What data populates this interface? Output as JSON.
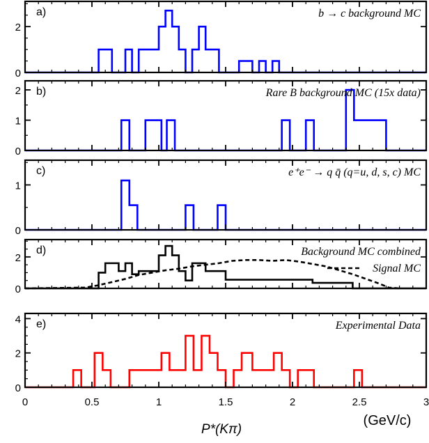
{
  "chart_data": {
    "type": "histogram-stack",
    "xlabel": "P*(Kπ)",
    "xunit": "(GeV/c)",
    "xlim": [
      0,
      3
    ],
    "xticks": [
      "0",
      "0.5",
      "1",
      "1.5",
      "2",
      "2.5",
      "3"
    ],
    "bin_width": 0.05,
    "panels": [
      {
        "tag": "a)",
        "title": "b → c background MC",
        "ylim": [
          0,
          3.1
        ],
        "yticks": [
          "0",
          "2"
        ],
        "series": [
          {
            "color": "#0000ff",
            "style": "solid",
            "bins": [
              {
                "x0": 0.55,
                "x1": 0.65,
                "y": 1
              },
              {
                "x0": 0.65,
                "x1": 0.75,
                "y": 0
              },
              {
                "x0": 0.75,
                "x1": 0.8,
                "y": 1
              },
              {
                "x0": 0.8,
                "x1": 0.85,
                "y": 0
              },
              {
                "x0": 0.85,
                "x1": 0.9,
                "y": 1
              },
              {
                "x0": 0.9,
                "x1": 1.0,
                "y": 1
              },
              {
                "x0": 1.0,
                "x1": 1.05,
                "y": 2
              },
              {
                "x0": 1.05,
                "x1": 1.1,
                "y": 2.7
              },
              {
                "x0": 1.1,
                "x1": 1.15,
                "y": 2
              },
              {
                "x0": 1.15,
                "x1": 1.2,
                "y": 1
              },
              {
                "x0": 1.2,
                "x1": 1.25,
                "y": 0
              },
              {
                "x0": 1.25,
                "x1": 1.3,
                "y": 1
              },
              {
                "x0": 1.3,
                "x1": 1.35,
                "y": 2
              },
              {
                "x0": 1.35,
                "x1": 1.4,
                "y": 1
              },
              {
                "x0": 1.4,
                "x1": 1.45,
                "y": 1
              },
              {
                "x0": 1.45,
                "x1": 1.5,
                "y": 0
              },
              {
                "x0": 1.6,
                "x1": 1.7,
                "y": 0.5
              },
              {
                "x0": 1.7,
                "x1": 1.75,
                "y": 0
              },
              {
                "x0": 1.75,
                "x1": 1.8,
                "y": 0.5
              },
              {
                "x0": 1.8,
                "x1": 1.85,
                "y": 0
              },
              {
                "x0": 1.85,
                "x1": 1.9,
                "y": 0.5
              }
            ]
          }
        ]
      },
      {
        "tag": "b)",
        "title": "Rare B background MC (15x data)",
        "ylim": [
          0,
          2.3
        ],
        "yticks": [
          "0",
          "1",
          "2"
        ],
        "series": [
          {
            "color": "#0000ff",
            "style": "solid",
            "bins": [
              {
                "x0": 0.72,
                "x1": 0.78,
                "y": 1
              },
              {
                "x0": 0.9,
                "x1": 1.02,
                "y": 1
              },
              {
                "x0": 1.06,
                "x1": 1.12,
                "y": 1
              },
              {
                "x0": 1.92,
                "x1": 1.98,
                "y": 1
              },
              {
                "x0": 2.1,
                "x1": 2.16,
                "y": 1
              },
              {
                "x0": 2.4,
                "x1": 2.46,
                "y": 2
              },
              {
                "x0": 2.46,
                "x1": 2.7,
                "y": 1
              }
            ]
          }
        ]
      },
      {
        "tag": "c)",
        "title": "e⁺e⁻ → q q̄ (q=u, d, s, c) MC",
        "ylim": [
          0,
          1.55
        ],
        "yticks": [
          "0",
          "1"
        ],
        "series": [
          {
            "color": "#0000ff",
            "style": "solid",
            "bins": [
              {
                "x0": 0.72,
                "x1": 0.78,
                "y": 1.1
              },
              {
                "x0": 0.78,
                "x1": 0.84,
                "y": 0.55
              },
              {
                "x0": 1.2,
                "x1": 1.26,
                "y": 0.55
              },
              {
                "x0": 1.44,
                "x1": 1.5,
                "y": 0.55
              }
            ]
          }
        ]
      },
      {
        "tag": "d)",
        "title": "Background MC combined",
        "legend": "Signal MC",
        "ylim": [
          0,
          3.1
        ],
        "yticks": [
          "0",
          "2"
        ],
        "series": [
          {
            "color": "#000000",
            "style": "solid",
            "bins": [
              {
                "x0": 0.55,
                "x1": 0.6,
                "y": 1
              },
              {
                "x0": 0.6,
                "x1": 0.65,
                "y": 1.6
              },
              {
                "x0": 0.65,
                "x1": 0.7,
                "y": 1.6
              },
              {
                "x0": 0.7,
                "x1": 0.75,
                "y": 1.1
              },
              {
                "x0": 0.75,
                "x1": 0.8,
                "y": 1.6
              },
              {
                "x0": 0.8,
                "x1": 0.85,
                "y": 0.9
              },
              {
                "x0": 0.85,
                "x1": 0.9,
                "y": 1.1
              },
              {
                "x0": 0.9,
                "x1": 1.0,
                "y": 1.1
              },
              {
                "x0": 1.0,
                "x1": 1.05,
                "y": 2.1
              },
              {
                "x0": 1.05,
                "x1": 1.1,
                "y": 2.7
              },
              {
                "x0": 1.1,
                "x1": 1.15,
                "y": 2.1
              },
              {
                "x0": 1.15,
                "x1": 1.2,
                "y": 1.1
              },
              {
                "x0": 1.2,
                "x1": 1.25,
                "y": 0.5
              },
              {
                "x0": 1.25,
                "x1": 1.3,
                "y": 1.6
              },
              {
                "x0": 1.3,
                "x1": 1.35,
                "y": 1.6
              },
              {
                "x0": 1.35,
                "x1": 1.4,
                "y": 1.1
              },
              {
                "x0": 1.4,
                "x1": 1.5,
                "y": 1.1
              },
              {
                "x0": 1.5,
                "x1": 1.6,
                "y": 0.55
              },
              {
                "x0": 1.6,
                "x1": 1.7,
                "y": 0.55
              },
              {
                "x0": 1.7,
                "x1": 1.75,
                "y": 0.55
              },
              {
                "x0": 1.75,
                "x1": 1.8,
                "y": 0.55
              },
              {
                "x0": 1.8,
                "x1": 1.85,
                "y": 0.55
              },
              {
                "x0": 1.85,
                "x1": 1.95,
                "y": 0.55
              },
              {
                "x0": 1.95,
                "x1": 2.1,
                "y": 0.55
              },
              {
                "x0": 2.1,
                "x1": 2.15,
                "y": 0.55
              },
              {
                "x0": 2.15,
                "x1": 2.45,
                "y": 0.35
              }
            ]
          },
          {
            "color": "#000000",
            "style": "dashed",
            "points": [
              [
                0.0,
                0
              ],
              [
                0.45,
                0.05
              ],
              [
                0.55,
                0.2
              ],
              [
                0.65,
                0.4
              ],
              [
                0.75,
                0.6
              ],
              [
                0.85,
                0.85
              ],
              [
                0.95,
                1.0
              ],
              [
                1.05,
                1.15
              ],
              [
                1.15,
                1.25
              ],
              [
                1.25,
                1.4
              ],
              [
                1.35,
                1.5
              ],
              [
                1.45,
                1.6
              ],
              [
                1.55,
                1.75
              ],
              [
                1.65,
                1.8
              ],
              [
                1.75,
                1.8
              ],
              [
                1.85,
                1.75
              ],
              [
                1.95,
                1.8
              ],
              [
                2.05,
                1.7
              ],
              [
                2.15,
                1.55
              ],
              [
                2.25,
                1.4
              ],
              [
                2.35,
                1.15
              ],
              [
                2.45,
                0.9
              ],
              [
                2.55,
                0.6
              ],
              [
                2.65,
                0.3
              ],
              [
                2.72,
                0.05
              ],
              [
                2.8,
                0
              ]
            ]
          }
        ]
      },
      {
        "tag": "e)",
        "title": "Experimental Data",
        "ylim": [
          0,
          4.3
        ],
        "yticks": [
          "0",
          "2",
          "4"
        ],
        "series": [
          {
            "color": "#ff0000",
            "style": "solid",
            "bins": [
              {
                "x0": 0.36,
                "x1": 0.42,
                "y": 1
              },
              {
                "x0": 0.52,
                "x1": 0.58,
                "y": 2
              },
              {
                "x0": 0.58,
                "x1": 0.64,
                "y": 1
              },
              {
                "x0": 0.78,
                "x1": 1.02,
                "y": 1
              },
              {
                "x0": 1.02,
                "x1": 1.08,
                "y": 2
              },
              {
                "x0": 1.08,
                "x1": 1.2,
                "y": 1
              },
              {
                "x0": 1.2,
                "x1": 1.26,
                "y": 3
              },
              {
                "x0": 1.26,
                "x1": 1.32,
                "y": 1
              },
              {
                "x0": 1.32,
                "x1": 1.38,
                "y": 3
              },
              {
                "x0": 1.38,
                "x1": 1.44,
                "y": 2
              },
              {
                "x0": 1.44,
                "x1": 1.5,
                "y": 1
              },
              {
                "x0": 1.5,
                "x1": 1.56,
                "y": 0
              },
              {
                "x0": 1.56,
                "x1": 1.62,
                "y": 1
              },
              {
                "x0": 1.62,
                "x1": 1.7,
                "y": 2
              },
              {
                "x0": 1.7,
                "x1": 1.86,
                "y": 1
              },
              {
                "x0": 1.86,
                "x1": 1.92,
                "y": 2
              },
              {
                "x0": 1.92,
                "x1": 1.98,
                "y": 1
              },
              {
                "x0": 1.98,
                "x1": 2.04,
                "y": 0
              },
              {
                "x0": 2.04,
                "x1": 2.16,
                "y": 1
              },
              {
                "x0": 2.16,
                "x1": 2.22,
                "y": 0
              },
              {
                "x0": 2.46,
                "x1": 2.52,
                "y": 1
              }
            ]
          }
        ]
      }
    ]
  }
}
